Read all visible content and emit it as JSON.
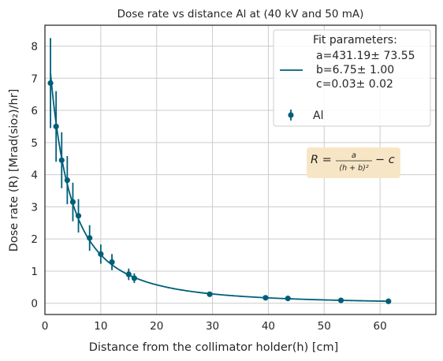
{
  "chart_data": {
    "type": "scatter",
    "title": "Dose rate vs distance Al at  (40 kV and 50 mA)",
    "xlabel": "Distance from the collimator holder(h) [cm]",
    "ylabel": "Dose rate (R) [Mrad(sio₂)/hr]",
    "xlim": [
      0,
      70
    ],
    "ylim": [
      -0.35,
      8.65
    ],
    "xticks": [
      0,
      10,
      20,
      30,
      40,
      50,
      60
    ],
    "yticks": [
      0,
      1,
      2,
      3,
      4,
      5,
      6,
      7,
      8
    ],
    "grid": true,
    "legend_position": "top-right",
    "colors": {
      "series": "#005f78",
      "annotation_bg": "#f7e6c6"
    },
    "legend": {
      "fit_lines": [
        "Fit parameters:",
        "a=431.19± 73.55",
        "b=6.75± 1.00",
        "c=0.03± 0.02"
      ],
      "data_label": "Al"
    },
    "annotation": {
      "formula_lhs": "R =",
      "formula_num": "a",
      "formula_den": "(h + b)²",
      "formula_rhs": "− c"
    },
    "fit": {
      "a": 431.19,
      "b": 6.75,
      "c": 0.03,
      "x_range": [
        1,
        61.5
      ]
    },
    "series": [
      {
        "name": "Al",
        "points": [
          {
            "x": 1,
            "y": 6.85,
            "yerr": 1.4
          },
          {
            "x": 2,
            "y": 5.5,
            "yerr": 1.1
          },
          {
            "x": 3,
            "y": 4.45,
            "yerr": 0.87
          },
          {
            "x": 4,
            "y": 3.83,
            "yerr": 0.75
          },
          {
            "x": 5,
            "y": 3.15,
            "yerr": 0.6
          },
          {
            "x": 6,
            "y": 2.72,
            "yerr": 0.52
          },
          {
            "x": 8,
            "y": 2.03,
            "yerr": 0.4
          },
          {
            "x": 10,
            "y": 1.53,
            "yerr": 0.3
          },
          {
            "x": 12,
            "y": 1.28,
            "yerr": 0.25
          },
          {
            "x": 15,
            "y": 0.9,
            "yerr": 0.18
          },
          {
            "x": 16,
            "y": 0.78,
            "yerr": 0.15
          },
          {
            "x": 29.5,
            "y": 0.28,
            "yerr": 0.04
          },
          {
            "x": 39.5,
            "y": 0.17,
            "yerr": 0.02
          },
          {
            "x": 43.5,
            "y": 0.15,
            "yerr": 0.02
          },
          {
            "x": 53,
            "y": 0.09,
            "yerr": 0.01
          },
          {
            "x": 61.5,
            "y": 0.06,
            "yerr": 0.01
          }
        ]
      }
    ]
  }
}
